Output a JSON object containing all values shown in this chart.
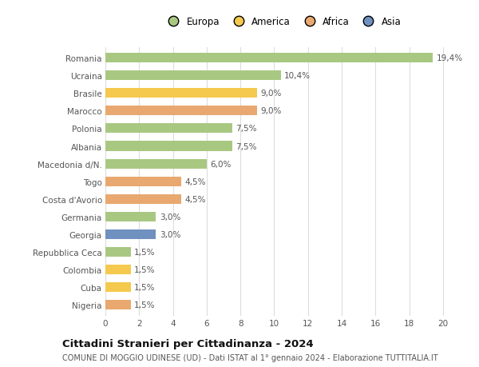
{
  "categories": [
    "Romania",
    "Ucraina",
    "Brasile",
    "Marocco",
    "Polonia",
    "Albania",
    "Macedonia d/N.",
    "Togo",
    "Costa d'Avorio",
    "Germania",
    "Georgia",
    "Repubblica Ceca",
    "Colombia",
    "Cuba",
    "Nigeria"
  ],
  "values": [
    19.4,
    10.4,
    9.0,
    9.0,
    7.5,
    7.5,
    6.0,
    4.5,
    4.5,
    3.0,
    3.0,
    1.5,
    1.5,
    1.5,
    1.5
  ],
  "labels": [
    "19,4%",
    "10,4%",
    "9,0%",
    "9,0%",
    "7,5%",
    "7,5%",
    "6,0%",
    "4,5%",
    "4,5%",
    "3,0%",
    "3,0%",
    "1,5%",
    "1,5%",
    "1,5%",
    "1,5%"
  ],
  "colors": [
    "#a8c882",
    "#a8c882",
    "#f5c94e",
    "#e8a870",
    "#a8c882",
    "#a8c882",
    "#a8c882",
    "#e8a870",
    "#e8a870",
    "#a8c882",
    "#7090c0",
    "#a8c882",
    "#f5c94e",
    "#f5c94e",
    "#e8a870"
  ],
  "legend_labels": [
    "Europa",
    "America",
    "Africa",
    "Asia"
  ],
  "legend_colors": [
    "#a8c882",
    "#f5c94e",
    "#e8a870",
    "#7090c0"
  ],
  "xlim": [
    0,
    21
  ],
  "xticks": [
    0,
    2,
    4,
    6,
    8,
    10,
    12,
    14,
    16,
    18,
    20
  ],
  "title": "Cittadini Stranieri per Cittadinanza - 2024",
  "subtitle": "COMUNE DI MOGGIO UDINESE (UD) - Dati ISTAT al 1° gennaio 2024 - Elaborazione TUTTITALIA.IT",
  "background_color": "#ffffff",
  "bar_height": 0.55,
  "label_fontsize": 7.5,
  "tick_fontsize": 7.5,
  "title_fontsize": 9.5,
  "subtitle_fontsize": 7.0,
  "legend_fontsize": 8.5
}
